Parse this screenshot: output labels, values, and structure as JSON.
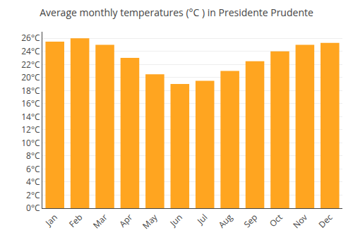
{
  "chart_data": {
    "type": "bar",
    "title": "Average monthly temperatures (°C ) in Presidente Prudente",
    "categories": [
      "Jan",
      "Feb",
      "Mar",
      "Apr",
      "May",
      "Jun",
      "Jul",
      "Aug",
      "Sep",
      "Oct",
      "Nov",
      "Dec"
    ],
    "values": [
      25.5,
      26.0,
      25.0,
      23.0,
      20.5,
      19.0,
      19.5,
      21.0,
      22.5,
      24.0,
      25.0,
      25.3
    ],
    "color": "#FFA520",
    "ylim": [
      0,
      27
    ],
    "yticks": [
      {
        "value": 0,
        "label": "0°C"
      },
      {
        "value": 2,
        "label": "2°C"
      },
      {
        "value": 4,
        "label": "4°C"
      },
      {
        "value": 6,
        "label": "6°C"
      },
      {
        "value": 8,
        "label": "8°C"
      },
      {
        "value": 10,
        "label": "10°C"
      },
      {
        "value": 12,
        "label": "12°C"
      },
      {
        "value": 14,
        "label": "14°C"
      },
      {
        "value": 16,
        "label": "16°C"
      },
      {
        "value": 18,
        "label": "18°C"
      },
      {
        "value": 20,
        "label": "20°C"
      },
      {
        "value": 22,
        "label": "22°C"
      },
      {
        "value": 24,
        "label": "24°C"
      },
      {
        "value": 26,
        "label": "26°C"
      }
    ],
    "grid": true
  }
}
